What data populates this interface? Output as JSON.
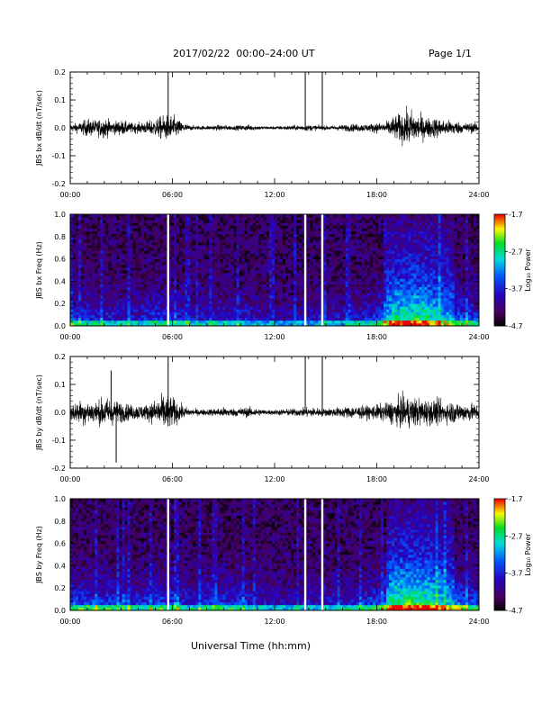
{
  "header": {
    "date_range": "2017/02/22  00:00–24:00 UT",
    "page": "Page 1/1"
  },
  "xaxis_label": "Universal Time (hh:mm)",
  "chart_data": [
    {
      "type": "line",
      "title": "",
      "ylabel": "JBS bx dB/dt (nT/sec)",
      "xlim": [
        0,
        24
      ],
      "ylim": [
        -0.2,
        0.2
      ],
      "xticks": [
        "00:00",
        "06:00",
        "12:00",
        "18:00",
        "24:00"
      ],
      "yticks": [
        "-0.2",
        "-0.1",
        "0.0",
        "0.1",
        "0.2"
      ],
      "envelope": {
        "hours": [
          0,
          0.5,
          1,
          1.5,
          2,
          2.5,
          3,
          3.5,
          4,
          4.5,
          5,
          5.5,
          6,
          6.5,
          7,
          7.5,
          8,
          8.5,
          9,
          9.5,
          10,
          10.5,
          11,
          11.5,
          12,
          12.5,
          13,
          13.5,
          14,
          14.5,
          15,
          15.5,
          16,
          16.5,
          17,
          17.5,
          18,
          18.5,
          19,
          19.5,
          20,
          20.5,
          21,
          21.5,
          22,
          22.5,
          23,
          23.5,
          24
        ],
        "amplitude": [
          0.015,
          0.02,
          0.035,
          0.03,
          0.04,
          0.025,
          0.03,
          0.02,
          0.02,
          0.025,
          0.035,
          0.05,
          0.05,
          0.025,
          0.01,
          0.008,
          0.008,
          0.01,
          0.012,
          0.008,
          0.01,
          0.012,
          0.008,
          0.006,
          0.006,
          0.008,
          0.01,
          0.01,
          0.012,
          0.01,
          0.008,
          0.01,
          0.012,
          0.015,
          0.015,
          0.015,
          0.02,
          0.02,
          0.045,
          0.06,
          0.07,
          0.05,
          0.04,
          0.04,
          0.03,
          0.03,
          0.02,
          0.02,
          0.02
        ]
      },
      "spikes": [
        {
          "hour": 5.75,
          "top": 0.2,
          "bottom": 0.0
        },
        {
          "hour": 13.8,
          "top": 0.2,
          "bottom": -0.01
        },
        {
          "hour": 14.8,
          "top": 0.2,
          "bottom": 0.0
        }
      ]
    },
    {
      "type": "heatmap",
      "title": "",
      "ylabel": "JBS bx Freq (Hz)",
      "xlim": [
        0,
        24
      ],
      "ylim": [
        0,
        1.0
      ],
      "xticks": [
        "00:00",
        "06:00",
        "12:00",
        "18:00",
        "24:00"
      ],
      "yticks": [
        "0.0",
        "0.2",
        "0.4",
        "0.6",
        "0.8",
        "1.0"
      ],
      "colorbar": {
        "label": "Log₁₀ Power",
        "min": -4.7,
        "max": -1.7,
        "ticks": [
          "-1.7",
          "-2.7",
          "-3.7",
          "-4.7"
        ]
      },
      "gaps_hours": [
        5.75,
        13.8,
        14.8
      ],
      "activity": {
        "hours": [
          0,
          1,
          2,
          3,
          4,
          5,
          6,
          7,
          8,
          9,
          10,
          11,
          12,
          13,
          14,
          15,
          16,
          17,
          18,
          19,
          20,
          21,
          22,
          23,
          24
        ],
        "level": [
          0.45,
          0.45,
          0.4,
          0.35,
          0.35,
          0.45,
          0.45,
          0.3,
          0.35,
          0.35,
          0.35,
          0.3,
          0.2,
          0.2,
          0.25,
          0.3,
          0.3,
          0.35,
          0.45,
          0.85,
          0.9,
          0.85,
          0.7,
          0.55,
          0.45
        ]
      }
    },
    {
      "type": "line",
      "title": "",
      "ylabel": "JBS by dB/dt (nT/sec)",
      "xlim": [
        0,
        24
      ],
      "ylim": [
        -0.2,
        0.2
      ],
      "xticks": [
        "00:00",
        "06:00",
        "12:00",
        "18:00",
        "24:00"
      ],
      "yticks": [
        "-0.2",
        "-0.1",
        "0.0",
        "0.1",
        "0.2"
      ],
      "envelope": {
        "hours": [
          0,
          0.5,
          1,
          1.5,
          2,
          2.5,
          3,
          3.5,
          4,
          4.5,
          5,
          5.5,
          6,
          6.5,
          7,
          7.5,
          8,
          8.5,
          9,
          9.5,
          10,
          10.5,
          11,
          11.5,
          12,
          12.5,
          13,
          13.5,
          14,
          14.5,
          15,
          15.5,
          16,
          16.5,
          17,
          17.5,
          18,
          18.5,
          19,
          19.5,
          20,
          20.5,
          21,
          21.5,
          22,
          22.5,
          23,
          23.5,
          24
        ],
        "amplitude": [
          0.03,
          0.045,
          0.05,
          0.04,
          0.06,
          0.05,
          0.04,
          0.03,
          0.03,
          0.03,
          0.05,
          0.07,
          0.06,
          0.03,
          0.015,
          0.012,
          0.012,
          0.015,
          0.02,
          0.015,
          0.018,
          0.02,
          0.015,
          0.01,
          0.01,
          0.012,
          0.015,
          0.015,
          0.02,
          0.018,
          0.015,
          0.018,
          0.02,
          0.025,
          0.025,
          0.025,
          0.03,
          0.035,
          0.05,
          0.06,
          0.06,
          0.055,
          0.05,
          0.05,
          0.04,
          0.045,
          0.035,
          0.035,
          0.03
        ]
      },
      "spikes": [
        {
          "hour": 2.4,
          "top": 0.15,
          "bottom": -0.03
        },
        {
          "hour": 2.7,
          "top": 0.02,
          "bottom": -0.18
        },
        {
          "hour": 5.75,
          "top": 0.2,
          "bottom": -0.05
        },
        {
          "hour": 13.8,
          "top": 0.2,
          "bottom": 0.0
        },
        {
          "hour": 14.8,
          "top": 0.2,
          "bottom": 0.0
        }
      ]
    },
    {
      "type": "heatmap",
      "title": "",
      "ylabel": "JBS by Freq (Hz)",
      "xlim": [
        0,
        24
      ],
      "ylim": [
        0,
        1.0
      ],
      "xticks": [
        "00:00",
        "06:00",
        "12:00",
        "18:00",
        "24:00"
      ],
      "yticks": [
        "0.0",
        "0.2",
        "0.4",
        "0.6",
        "0.8",
        "1.0"
      ],
      "colorbar": {
        "label": "Log₁₀ Power",
        "min": -4.7,
        "max": -1.7,
        "ticks": [
          "-1.7",
          "-2.7",
          "-3.7",
          "-4.7"
        ]
      },
      "gaps_hours": [
        5.75,
        13.8,
        14.8
      ],
      "activity": {
        "hours": [
          0,
          1,
          2,
          3,
          4,
          5,
          6,
          7,
          8,
          9,
          10,
          11,
          12,
          13,
          14,
          15,
          16,
          17,
          18,
          19,
          20,
          21,
          22,
          23,
          24
        ],
        "level": [
          0.5,
          0.55,
          0.5,
          0.45,
          0.4,
          0.5,
          0.5,
          0.35,
          0.45,
          0.45,
          0.45,
          0.35,
          0.25,
          0.25,
          0.3,
          0.35,
          0.35,
          0.4,
          0.5,
          0.9,
          0.95,
          0.9,
          0.75,
          0.6,
          0.5
        ]
      }
    }
  ]
}
